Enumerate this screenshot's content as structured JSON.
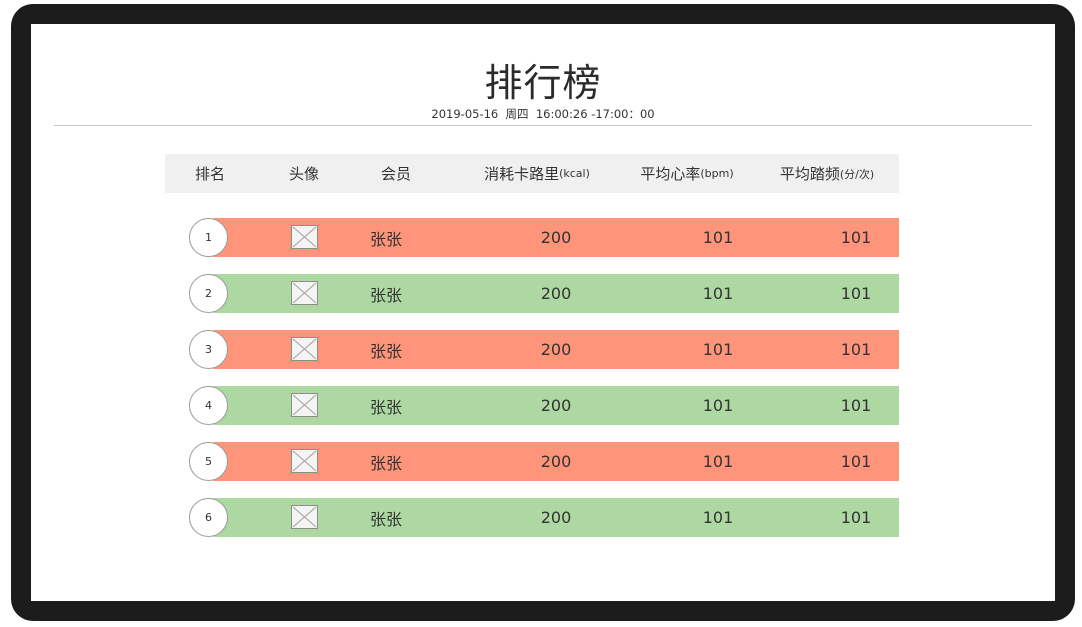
{
  "page": {
    "title": "排行榜",
    "subtitle": "2019-05-16  周四  16:00:26 -17:00：00"
  },
  "table": {
    "headers": {
      "rank": "排名",
      "avatar": "头像",
      "member": "会员",
      "calories": "消耗卡路里",
      "calories_unit": "(kcal)",
      "heart_rate": "平均心率",
      "heart_rate_unit": "(bpm)",
      "cadence": "平均踏频",
      "cadence_unit": "(分/次)"
    },
    "rows": [
      {
        "rank": "1",
        "name": "张张",
        "calories": "200",
        "heart_rate": "101",
        "cadence": "101",
        "color": "#fe947a"
      },
      {
        "rank": "2",
        "name": "张张",
        "calories": "200",
        "heart_rate": "101",
        "cadence": "101",
        "color": "#add8a1"
      },
      {
        "rank": "3",
        "name": "张张",
        "calories": "200",
        "heart_rate": "101",
        "cadence": "101",
        "color": "#fe947a"
      },
      {
        "rank": "4",
        "name": "张张",
        "calories": "200",
        "heart_rate": "101",
        "cadence": "101",
        "color": "#add8a1"
      },
      {
        "rank": "5",
        "name": "张张",
        "calories": "200",
        "heart_rate": "101",
        "cadence": "101",
        "color": "#fe947a"
      },
      {
        "rank": "6",
        "name": "张张",
        "calories": "200",
        "heart_rate": "101",
        "cadence": "101",
        "color": "#add8a1"
      }
    ]
  },
  "icons": {
    "avatar": "broken-image-icon"
  },
  "colors": {
    "frame": "#1c1c1c",
    "header_bg": "#f0f0f0",
    "row_odd": "#fe947a",
    "row_even": "#add8a1"
  }
}
